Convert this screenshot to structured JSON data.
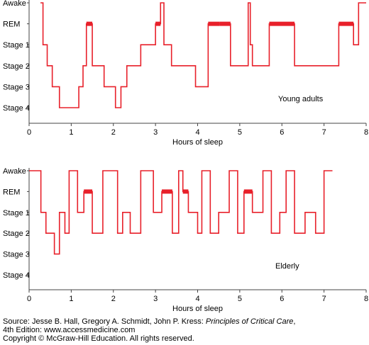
{
  "chart_data": [
    {
      "type": "line",
      "annotation": "Young adults",
      "xlabel": "Hours of sleep",
      "ylabel": "",
      "xlim": [
        0,
        8
      ],
      "x_ticks": [
        "0",
        "1",
        "2",
        "3",
        "4",
        "5",
        "6",
        "7",
        "8"
      ],
      "y_categories": [
        "Awake",
        "REM",
        "Stage 1",
        "Stage 2",
        "Stage 3",
        "Stage 4"
      ],
      "series": [
        {
          "x": [
            0.27,
            0.33,
            0.43,
            0.55,
            0.72,
            1.18,
            1.28,
            1.36,
            1.5,
            1.78,
            2.05,
            2.18,
            2.32,
            2.65,
            3.0,
            3.12,
            3.2,
            3.38,
            3.6,
            3.95,
            4.25,
            4.52,
            4.78,
            5.2,
            5.25,
            5.3,
            5.7,
            6.3,
            6.8,
            7.35,
            7.7,
            7.82,
            8.0
          ],
          "values": [
            "Awake",
            "Stage 1",
            "Stage 2",
            "Stage 3",
            "Stage 4",
            "Stage 3",
            "Stage 2",
            "REM",
            "Stage 2",
            "Stage 3",
            "Stage 4",
            "Stage 3",
            "Stage 2",
            "Stage 1",
            "REM",
            "Awake",
            "Stage 1",
            "Stage 2",
            "Stage 2",
            "Stage 3",
            "REM",
            "REM",
            "Stage 2",
            "Awake",
            "Stage 1",
            "Stage 2",
            "REM",
            "Stage 2",
            "Stage 2",
            "REM",
            "Stage 1",
            "Awake",
            "Awake"
          ]
        }
      ]
    },
    {
      "type": "line",
      "annotation": "Elderly",
      "xlabel": "Hours of sleep",
      "ylabel": "",
      "xlim": [
        0,
        8
      ],
      "x_ticks": [
        "0",
        "1",
        "2",
        "3",
        "4",
        "5",
        "6",
        "7",
        "8"
      ],
      "y_categories": [
        "Awake",
        "REM",
        "Stage 1",
        "Stage 2",
        "Stage 3",
        "Stage 4"
      ],
      "series": [
        {
          "x": [
            0.0,
            0.28,
            0.4,
            0.6,
            0.72,
            0.85,
            0.95,
            1.15,
            1.3,
            1.5,
            1.75,
            2.1,
            2.22,
            2.4,
            2.65,
            2.95,
            3.15,
            3.4,
            3.55,
            3.65,
            3.78,
            4.0,
            4.1,
            4.3,
            4.5,
            4.75,
            4.95,
            5.1,
            5.3,
            5.55,
            5.75,
            5.95,
            6.1,
            6.3,
            6.55,
            6.8,
            7.0,
            7.2
          ],
          "values": [
            "Awake",
            "Stage 1",
            "Stage 2",
            "Stage 3",
            "Stage 1",
            "Stage 2",
            "Awake",
            "Stage 1",
            "REM",
            "Stage 2",
            "Awake",
            "Stage 2",
            "Stage 1",
            "Stage 2",
            "Awake",
            "Stage 1",
            "REM",
            "Stage 2",
            "Awake",
            "REM",
            "Stage 1",
            "Stage 2",
            "Awake",
            "Stage 2",
            "Stage 1",
            "Awake",
            "Stage 2",
            "REM",
            "Stage 1",
            "Awake",
            "Stage 2",
            "Stage 1",
            "Awake",
            "Stage 2",
            "Stage 1",
            "Stage 2",
            "Awake",
            "Awake"
          ]
        }
      ]
    }
  ],
  "source": {
    "line1_prefix": "Source: Jesse B. Hall, Gregory A. Schmidt, John P. Kress: ",
    "book_title": "Principles of Critical Care",
    "line1_suffix": ",",
    "line2": "4th Edition: www.accessmedicine.com",
    "line3": "Copyright © McGraw-Hill Education. All rights reserved."
  },
  "colors": {
    "trace": "#e8202a",
    "axis": "#444444"
  }
}
